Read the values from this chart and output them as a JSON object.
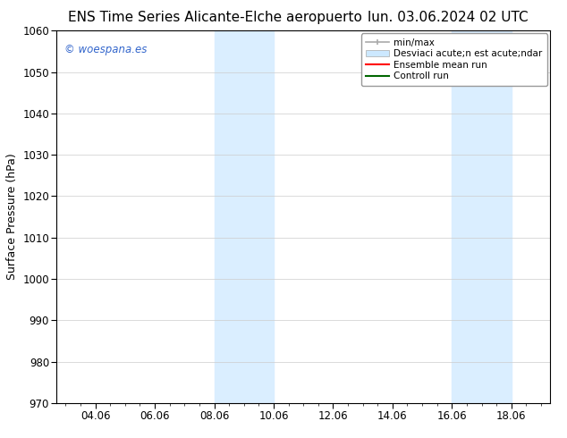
{
  "title_left": "ENS Time Series Alicante-Elche aeropuerto",
  "title_right": "lun. 03.06.2024 02 UTC",
  "ylabel": "Surface Pressure (hPa)",
  "ylim": [
    970,
    1060
  ],
  "yticks": [
    970,
    980,
    990,
    1000,
    1010,
    1020,
    1030,
    1040,
    1050,
    1060
  ],
  "xtick_labels": [
    "04.06",
    "06.06",
    "08.06",
    "10.06",
    "12.06",
    "14.06",
    "16.06",
    "18.06"
  ],
  "xtick_positions": [
    1,
    3,
    5,
    7,
    9,
    11,
    13,
    15
  ],
  "xlim": [
    -0.3,
    16.3
  ],
  "watermark": "© woespana.es",
  "watermark_color": "#3366cc",
  "bg_color": "#ffffff",
  "shaded_regions": [
    {
      "x_start": 5,
      "x_end": 7,
      "color": "#daeeff"
    },
    {
      "x_start": 13,
      "x_end": 15,
      "color": "#daeeff"
    }
  ],
  "legend_line1_label": "min/max",
  "legend_line2_label": "Desviaci acute;n est acute;ndar",
  "legend_line3_label": "Ensemble mean run",
  "legend_line4_label": "Controll run",
  "legend_color1": "#aaaaaa",
  "legend_color2": "#cce8ff",
  "legend_color3": "#ff0000",
  "legend_color4": "#006600",
  "title_fontsize": 11,
  "tick_fontsize": 8.5,
  "ylabel_fontsize": 9,
  "figure_bg": "#ffffff"
}
